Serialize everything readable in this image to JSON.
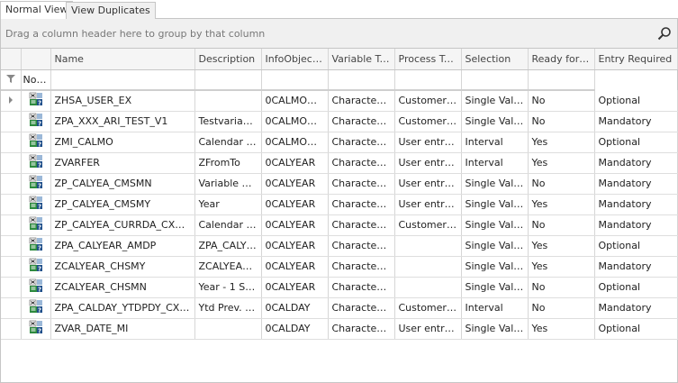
{
  "tabs": [
    {
      "label": "Normal View",
      "active": true
    },
    {
      "label": "View Duplicates",
      "active": false
    }
  ],
  "group_panel": {
    "text": "Drag a column header here to group by that column",
    "icon": "search-icon"
  },
  "columns": [
    "Name",
    "Description",
    "InfoObject/...",
    "Variable Type",
    "Process Type",
    "Selection",
    "Ready for I...",
    "Entry Required"
  ],
  "filter_row": {
    "icon": "filter-icon",
    "text": "No i..."
  },
  "row_icon": "variable-icon",
  "rows": [
    [
      "ZHSA_USER_EX",
      "",
      "0CALMONTH",
      "Characteris...",
      "Customer e...",
      "Single Value...",
      "No",
      "Optional"
    ],
    [
      "ZPA_XXX_ARI_TEST_V1",
      "Testvariabl...",
      "0CALMONTH",
      "Characteris...",
      "Customer e...",
      "Single Value...",
      "No",
      "Mandatory"
    ],
    [
      "ZMI_CALMO",
      "Calendar M...",
      "0CALMONTH",
      "Characteris...",
      "User entry ...",
      "Interval",
      "Yes",
      "Optional"
    ],
    [
      "ZVARFER",
      "ZFromTo",
      "0CALYEAR",
      "Characteris...",
      "User entry ...",
      "Interval",
      "Yes",
      "Mandatory"
    ],
    [
      "ZP_CALYEA_CMSMN",
      "Variable wit...",
      "0CALYEAR",
      "Characteris...",
      "User entry ...",
      "Single Value...",
      "No",
      "Mandatory"
    ],
    [
      "ZP_CALYEA_CMSMY",
      "Year",
      "0CALYEAR",
      "Characteris...",
      "User entry ...",
      "Single Value...",
      "Yes",
      "Mandatory"
    ],
    [
      "ZP_CALYEA_CURRDA_CXSMN",
      "Calendar y...",
      "0CALYEAR",
      "Characteris...",
      "Customer e...",
      "Single Value...",
      "No",
      "Mandatory"
    ],
    [
      "ZPA_CALYEAR_AMDP",
      "ZPA_CALYE...",
      "0CALYEAR",
      "Characteris...",
      "",
      "Single Value...",
      "Yes",
      "Optional"
    ],
    [
      "ZCALYEAR_CHSMY",
      "ZCALYEAR...",
      "0CALYEAR",
      "Characteris...",
      "",
      "Single Value...",
      "Yes",
      "Mandatory"
    ],
    [
      "ZCALYEAR_CHSMN",
      "Year - 1 Ste...",
      "0CALYEAR",
      "Characteris...",
      "",
      "Single Value...",
      "No",
      "Optional"
    ],
    [
      "ZPA_CALDAY_YTDPDY_CXIMN",
      "Ytd Prev. D...",
      "0CALDAY",
      "Characteris...",
      "Customer e...",
      "Interval",
      "No",
      "Mandatory"
    ],
    [
      "ZVAR_DATE_MI",
      "",
      "0CALDAY",
      "Characteris...",
      "User entry ...",
      "Single Value...",
      "Yes",
      "Optional"
    ]
  ]
}
